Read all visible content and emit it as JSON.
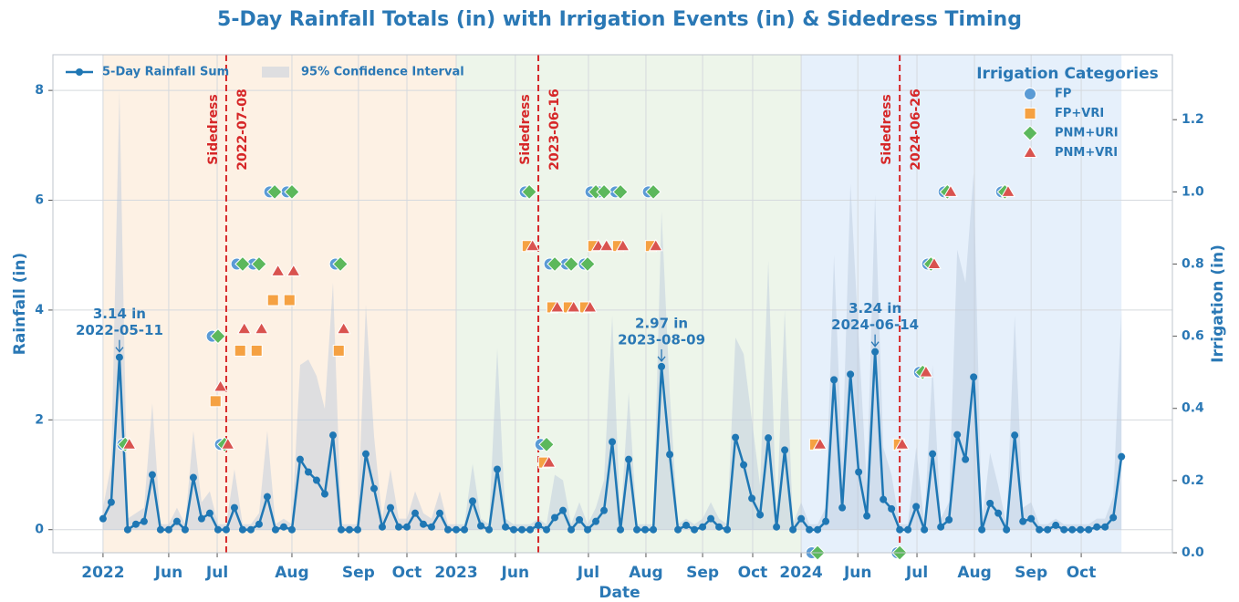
{
  "chart_data": {
    "type": "line",
    "title": "5-Day Rainfall Totals (in) with Irrigation Events (in) & Sidedress Timing",
    "xlabel": "Date",
    "ylabel": "Rainfall (in)",
    "y2label": "Irrigation (in)",
    "legend": "upper left",
    "grid": true,
    "x": [
      0,
      1,
      2,
      3,
      4,
      5,
      6,
      7,
      8,
      9,
      10,
      11,
      12,
      13,
      14,
      15,
      16,
      17,
      18,
      19,
      20,
      21,
      22,
      23,
      24,
      25,
      26,
      27,
      28,
      29,
      30,
      31,
      32,
      33,
      34,
      35,
      36,
      37,
      38,
      39,
      40,
      41,
      42,
      43,
      44,
      45,
      46,
      47,
      48,
      49,
      50,
      51,
      52,
      53,
      54,
      55,
      56,
      57,
      58,
      59,
      60,
      61,
      62,
      63,
      64,
      65,
      66,
      67,
      68,
      69,
      70,
      71,
      72,
      73,
      74,
      75,
      76,
      77,
      78,
      79,
      80,
      81,
      82,
      83,
      84,
      85,
      86,
      87,
      88,
      89,
      90,
      91,
      92,
      93,
      94,
      95,
      96,
      97,
      98,
      99,
      100,
      101,
      102,
      103,
      104,
      105,
      106,
      107,
      108,
      109,
      110,
      111,
      112,
      113,
      114,
      115,
      116,
      117,
      118,
      119,
      120,
      121,
      122,
      123,
      124
    ],
    "xlim": [
      -6.1,
      130.2
    ],
    "xticks": [
      {
        "value": 0,
        "label": "2022"
      },
      {
        "value": 8,
        "label": "Jun"
      },
      {
        "value": 13.9,
        "label": "Jul"
      },
      {
        "value": 23,
        "label": "Aug"
      },
      {
        "value": 31.1,
        "label": "Sep"
      },
      {
        "value": 37,
        "label": "Oct"
      },
      {
        "value": 43,
        "label": "2023"
      },
      {
        "value": 50.2,
        "label": "Jun"
      },
      {
        "value": 59.1,
        "label": "Jul"
      },
      {
        "value": 66.1,
        "label": "Aug"
      },
      {
        "value": 73,
        "label": "Sep"
      },
      {
        "value": 79.1,
        "label": "Oct"
      },
      {
        "value": 85,
        "label": "2024"
      },
      {
        "value": 91.9,
        "label": "Jun"
      },
      {
        "value": 99.1,
        "label": "Jul"
      },
      {
        "value": 106.1,
        "label": "Aug"
      },
      {
        "value": 113,
        "label": "Sep"
      },
      {
        "value": 119.1,
        "label": "Oct"
      }
    ],
    "ylim": [
      -0.42,
      8.65
    ],
    "yticks": [
      0,
      2,
      4,
      6,
      8
    ],
    "y2lim": [
      0,
      1.38
    ],
    "y2ticks": [
      {
        "value": 0,
        "label": "0.0"
      },
      0.2,
      0.4,
      0.6,
      0.8,
      {
        "value": 1,
        "label": "1.0"
      },
      1.2
    ],
    "series": [
      {
        "name": "5-Day Rainfall Sum",
        "color": "#1f77b4",
        "values": [
          0.2,
          0.5,
          3.14,
          0,
          0.1,
          0.15,
          1.0,
          0,
          0,
          0.15,
          0,
          0.95,
          0.2,
          0.3,
          0,
          0,
          0.4,
          0,
          0,
          0.1,
          0.6,
          0,
          0.05,
          0,
          1.28,
          1.05,
          0.9,
          0.65,
          1.72,
          0,
          0,
          0,
          1.38,
          0.75,
          0.05,
          0.4,
          0.05,
          0.05,
          0.3,
          0.1,
          0.05,
          0.3,
          0,
          0,
          0,
          0.52,
          0.07,
          0,
          1.1,
          0.05,
          0,
          0,
          0,
          0.08,
          0,
          0.22,
          0.35,
          0,
          0.18,
          0,
          0.15,
          0.35,
          1.6,
          0,
          1.28,
          0,
          0,
          0,
          2.97,
          1.37,
          0,
          0.08,
          0,
          0.05,
          0.2,
          0.05,
          0,
          1.68,
          1.18,
          0.57,
          0.27,
          1.67,
          0.05,
          1.45,
          0,
          0.2,
          0,
          0,
          0.15,
          2.73,
          0.4,
          2.83,
          1.05,
          0.25,
          3.24,
          0.55,
          0.38,
          0,
          0,
          0.42,
          0,
          1.38,
          0.05,
          0.18,
          1.73,
          1.28,
          2.78,
          0,
          0.48,
          0.3,
          0,
          1.72,
          0.15,
          0.2,
          0,
          0,
          0.08,
          0,
          0,
          0,
          0,
          0.05,
          0.05,
          0.22,
          1.33
        ]
      }
    ],
    "ci": {
      "name": "95% Confidence Interval",
      "color": "#b7c7dc",
      "upper": [
        0.4,
        1.2,
        8.0,
        0.2,
        0.3,
        0.4,
        2.3,
        0.1,
        0.1,
        0.4,
        0.1,
        1.8,
        0.5,
        0.7,
        0.1,
        0.1,
        1.1,
        0.1,
        0.1,
        0.3,
        1.8,
        0.1,
        0.2,
        0.1,
        3.0,
        3.1,
        2.8,
        2.2,
        4.5,
        0.1,
        0.1,
        0.1,
        4.1,
        1.7,
        0.2,
        1.1,
        0.2,
        0.2,
        0.7,
        0.3,
        0.2,
        0.7,
        0.1,
        0.1,
        0.1,
        1.2,
        0.2,
        0.1,
        3.3,
        0.2,
        0.1,
        0.1,
        0.1,
        0.2,
        0.1,
        1.0,
        0.9,
        0.1,
        0.5,
        0.1,
        0.4,
        0.9,
        3.9,
        0.1,
        2.5,
        0.1,
        0.1,
        0.1,
        5.8,
        2.5,
        0.1,
        0.2,
        0.1,
        0.2,
        0.5,
        0.2,
        0.1,
        3.5,
        3.2,
        2.0,
        0.8,
        4.9,
        0.2,
        4.0,
        0.1,
        0.5,
        0.1,
        0.1,
        0.4,
        5.0,
        1.2,
        6.3,
        3.5,
        0.8,
        6.1,
        1.5,
        1.0,
        0.1,
        0.1,
        1.5,
        0.1,
        3.0,
        0.2,
        0.5,
        5.1,
        4.5,
        6.5,
        0.1,
        1.4,
        0.8,
        0.1,
        3.9,
        0.4,
        0.5,
        0.1,
        0.1,
        0.2,
        0.1,
        0.1,
        0.1,
        0.1,
        0.2,
        0.2,
        0.6,
        4.0
      ],
      "lower": [
        0,
        0,
        0,
        0,
        0,
        0,
        0,
        0,
        0,
        0,
        0,
        0,
        0,
        0,
        0,
        0,
        0,
        0,
        0,
        0,
        0,
        0,
        0,
        0,
        0,
        0,
        0,
        0,
        0,
        0,
        0,
        0,
        0,
        0,
        0,
        0,
        0,
        0,
        0,
        0,
        0,
        0,
        0,
        0,
        0,
        0,
        0,
        0,
        0,
        0,
        0,
        0,
        0,
        0,
        0,
        0,
        0,
        0,
        0,
        0,
        0,
        0,
        0,
        0,
        0,
        0,
        0,
        0,
        0,
        0,
        0,
        0,
        0,
        0,
        0,
        0,
        0,
        0,
        0,
        0,
        0,
        0,
        0,
        0,
        0,
        0,
        0,
        0,
        0,
        0,
        0,
        0,
        0,
        0,
        0,
        0,
        0,
        0,
        0,
        0,
        0,
        0,
        0,
        0,
        0,
        0,
        0,
        0,
        0,
        0,
        0,
        0,
        0,
        0,
        0,
        0,
        0,
        0,
        0,
        0,
        0,
        0,
        0,
        0,
        0
      ]
    },
    "spans": [
      {
        "xlim": [
          0,
          43
        ],
        "color": "#fdf1e4"
      },
      {
        "xlim": [
          43,
          85
        ],
        "color": "#edf5ea"
      },
      {
        "xlim": [
          85,
          124
        ],
        "color": "#e6f0fb"
      }
    ],
    "vlines": [
      {
        "x": 15,
        "label": "Sidedress",
        "date": "2022-07-08",
        "color": "#d62728"
      },
      {
        "x": 53,
        "label": "Sidedress",
        "date": "2023-06-16",
        "color": "#d62728"
      },
      {
        "x": 97,
        "label": "Sidedress",
        "date": "2024-06-26",
        "color": "#d62728"
      }
    ],
    "annotations": [
      {
        "text": "3.14 in",
        "date": "2022-05-11",
        "x": 2,
        "y": 3.14
      },
      {
        "text": "2.97 in",
        "date": "2023-08-09",
        "x": 68,
        "y": 2.97
      },
      {
        "text": "3.24 in",
        "date": "2024-06-14",
        "x": 94,
        "y": 3.24
      }
    ],
    "irrigation": {
      "title": "Irrigation Categories",
      "legend": "upper right",
      "series": [
        {
          "name": "FP",
          "color": "#5b9bd5",
          "marker": "o",
          "axis": "y2",
          "x": [
            2.4,
            13.3,
            14.3,
            16.3,
            18.3,
            20.3,
            22.4,
            28.3,
            51.4,
            53.3,
            54.4,
            56.4,
            58.6,
            59.4,
            60.4,
            62.4,
            66.4,
            86.3,
            96.7,
            99.4,
            100.4,
            102.4,
            109.4
          ],
          "values": [
            0.3,
            0.6,
            0.3,
            0.8,
            0.8,
            1.0,
            1.0,
            0.8,
            1.0,
            0.3,
            0.8,
            0.8,
            0.8,
            1.0,
            1.0,
            1.0,
            1.0,
            0,
            0,
            0.5,
            0.8,
            1.0,
            1.0
          ]
        },
        {
          "name": "FP+VRI",
          "color": "#f5a142",
          "marker": "s",
          "axis": "y2",
          "x": [
            13.7,
            16.7,
            18.7,
            20.7,
            22.7,
            28.7,
            51.7,
            53.7,
            54.7,
            56.7,
            58.7,
            59.7,
            62.7,
            66.7,
            86.7,
            96.9
          ],
          "values": [
            0.42,
            0.56,
            0.56,
            0.7,
            0.7,
            0.56,
            0.85,
            0.25,
            0.68,
            0.68,
            0.68,
            0.85,
            0.85,
            0.85,
            0.3,
            0.3
          ]
        },
        {
          "name": "PNM+URI",
          "color": "#5cb85c",
          "marker": "D",
          "axis": "y2",
          "x": [
            2.7,
            14,
            14.8,
            17,
            19,
            20.9,
            23,
            28.9,
            51.9,
            54,
            55,
            57,
            59,
            60,
            61,
            63,
            67,
            87,
            97,
            99.8,
            100.8,
            102.8,
            109.8
          ],
          "values": [
            0.3,
            0.6,
            0.3,
            0.8,
            0.8,
            1.0,
            1.0,
            0.8,
            1.0,
            0.3,
            0.8,
            0.8,
            0.8,
            1.0,
            1.0,
            1.0,
            1.0,
            0,
            0,
            0.5,
            0.8,
            1.0,
            1.0
          ]
        },
        {
          "name": "PNM+VRI",
          "color": "#d9534f",
          "marker": "^",
          "axis": "y2",
          "x": [
            3.2,
            14.3,
            15.2,
            17.2,
            19.3,
            21.3,
            23.2,
            29.3,
            52.3,
            54.3,
            55.3,
            57.3,
            59.3,
            60.3,
            61.3,
            63.3,
            67.3,
            87.3,
            97.3,
            100.2,
            101.2,
            103.2,
            110.2
          ],
          "values": [
            0.3,
            0.46,
            0.3,
            0.62,
            0.62,
            0.78,
            0.78,
            0.62,
            0.85,
            0.25,
            0.68,
            0.68,
            0.68,
            0.85,
            0.85,
            0.85,
            0.85,
            0.3,
            0.3,
            0.5,
            0.8,
            1.0,
            1.0
          ]
        }
      ]
    }
  }
}
